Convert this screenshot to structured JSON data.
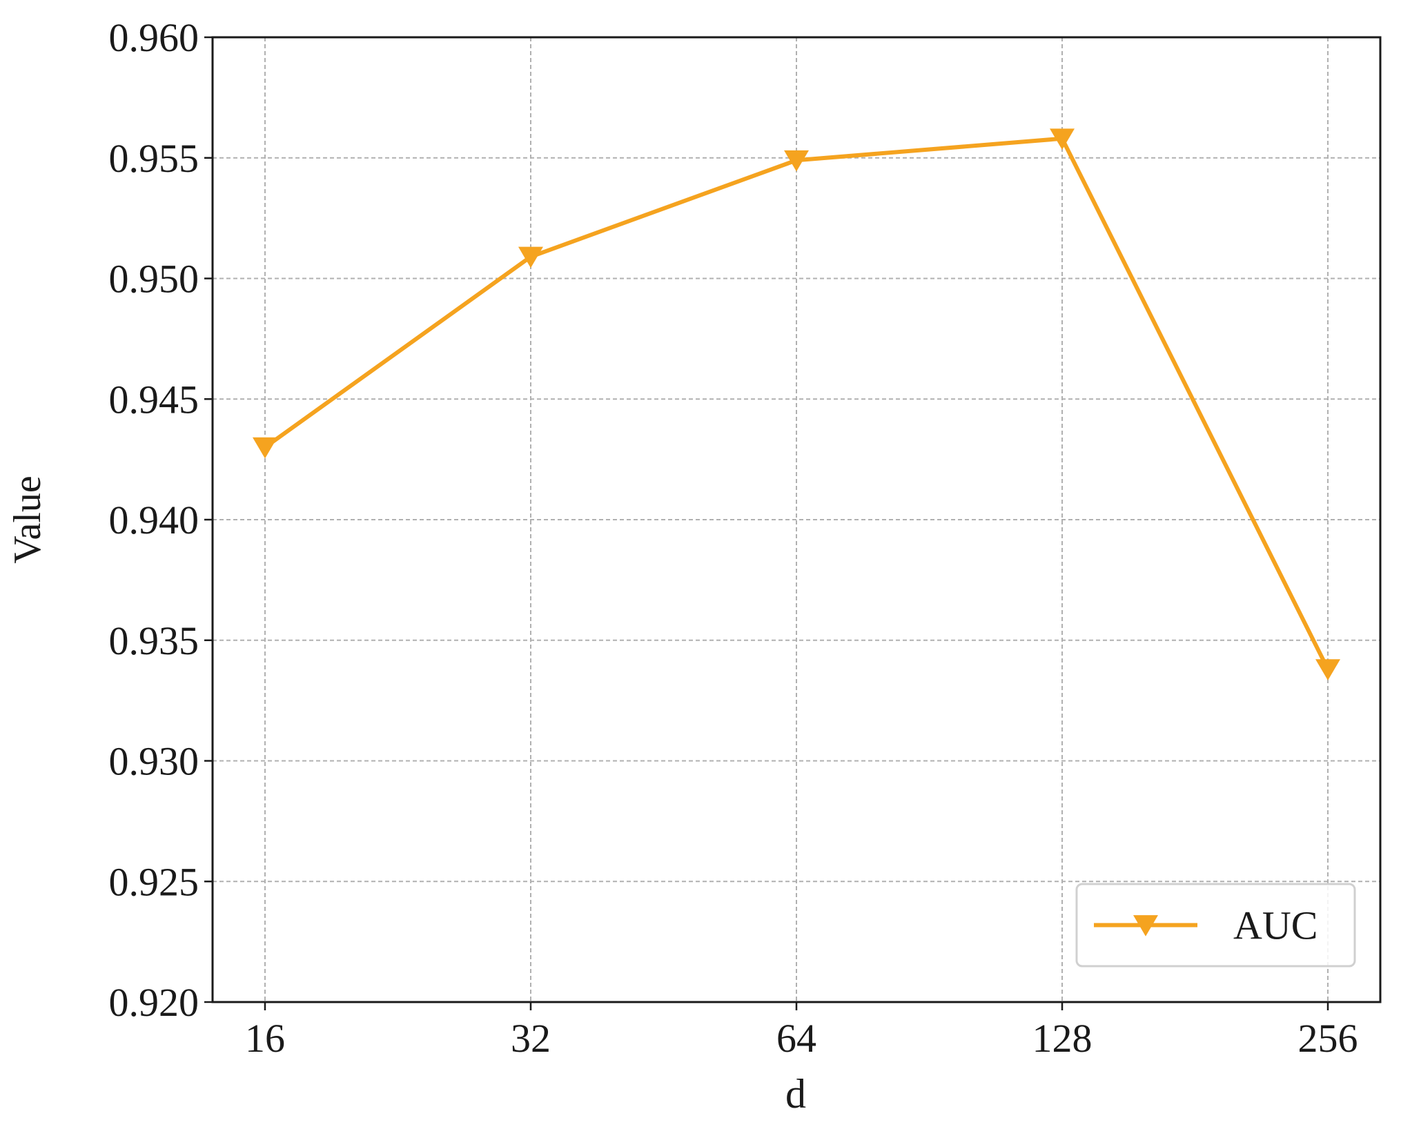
{
  "chart_data": {
    "type": "line",
    "x_label": "d",
    "y_label": "Value",
    "categories": [
      "16",
      "32",
      "64",
      "128",
      "256"
    ],
    "series": [
      {
        "name": "AUC",
        "color": "#f5a31f",
        "marker": "triangle-down",
        "values": [
          0.943,
          0.9509,
          0.9549,
          0.9558,
          0.9338
        ]
      }
    ],
    "ylim": [
      0.92,
      0.96
    ],
    "yticks": [
      {
        "value": 0.92,
        "label": "0.920"
      },
      0.925,
      {
        "value": 0.93,
        "label": "0.930"
      },
      0.935,
      {
        "value": 0.94,
        "label": "0.940"
      },
      0.945,
      {
        "value": 0.95,
        "label": "0.950"
      },
      0.955,
      {
        "value": 0.96,
        "label": "0.960"
      }
    ],
    "grid": true,
    "legend": "lower right"
  }
}
